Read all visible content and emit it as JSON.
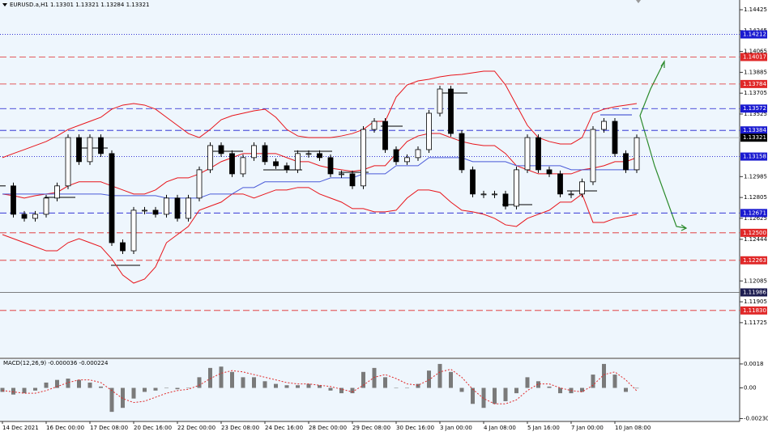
{
  "chart_data": {
    "type": "candlestick",
    "title": "EURUSD.a,H1  1.13301 1.13321 1.13284 1.13321",
    "categories": [
      "14 Dec 2021",
      null,
      null,
      null,
      "16 Dec 00:00",
      null,
      null,
      null,
      "17 Dec 08:00",
      null,
      null,
      null,
      "20 Dec 16:00",
      null,
      null,
      null,
      "22 Dec 00:00",
      null,
      null,
      null,
      "23 Dec 08:00",
      null,
      null,
      null,
      "24 Dec 16:00",
      null,
      null,
      null,
      "28 Dec 00:00",
      null,
      null,
      null,
      "29 Dec 08:00",
      null,
      null,
      null,
      "30 Dec 16:00",
      null,
      null,
      null,
      "3 Jan 00:00",
      null,
      null,
      null,
      "4 Jan 08:00",
      null,
      null,
      null,
      "5 Jan 16:00",
      null,
      null,
      null,
      "7 Jan 00:00",
      null,
      null,
      null,
      "10 Jan 08:00",
      null,
      null
    ],
    "close": [
      1.12905,
      1.1266,
      1.12625,
      1.1266,
      1.128,
      1.12905,
      1.13322,
      1.13114,
      1.13322,
      1.13184,
      1.12415,
      1.12345,
      1.12695,
      1.12695,
      1.1266,
      1.128,
      1.12625,
      1.128,
      1.13044,
      1.13253,
      1.13184,
      1.13009,
      1.13149,
      1.13253,
      1.13114,
      1.13079,
      1.13044,
      1.13184,
      1.13184,
      1.13149,
      1.13009,
      1.13009,
      1.12905,
      1.13392,
      1.13462,
      1.13218,
      1.13114,
      1.13149,
      1.13218,
      1.13532,
      1.13741,
      1.13357,
      1.13044,
      1.12835,
      1.12835,
      1.12835,
      1.1273,
      1.13044,
      1.13322,
      1.13044,
      1.13009,
      1.12835,
      1.12835,
      1.1294,
      1.13392,
      1.13462,
      1.13184,
      1.13044,
      1.13321
    ],
    "series": [
      {
        "color": "#e8141a",
        "values": [
          1.13149,
          1.13184,
          1.13218,
          1.13253,
          1.13288,
          1.13336,
          1.13392,
          1.13427,
          1.13462,
          1.13497,
          1.13567,
          1.13602,
          1.13616,
          1.13602,
          1.13567,
          1.13497,
          1.13427,
          1.13357,
          1.13322,
          1.13392,
          1.13476,
          1.13511,
          1.13532,
          1.13553,
          1.13567,
          1.13497,
          1.13392,
          1.13336,
          1.13322,
          1.13322,
          1.13322,
          1.13336,
          1.13357,
          1.13392,
          1.13462,
          1.13462,
          1.13671,
          1.13776,
          1.13811,
          1.13825,
          1.13846,
          1.1386,
          1.13867,
          1.13881,
          1.13895,
          1.13895,
          1.13776,
          1.13602,
          1.13427,
          1.13322,
          1.13288,
          1.13267,
          1.13267,
          1.13322,
          1.13532,
          1.13567,
          1.13588,
          1.13602,
          1.13616
        ]
      },
      {
        "color": "#e8141a",
        "values": [
          1.12835,
          1.12821,
          1.128,
          1.12821,
          1.12835,
          1.12849,
          1.12905,
          1.1294,
          1.1294,
          1.1294,
          1.12905,
          1.1287,
          1.12835,
          1.12835,
          1.1287,
          1.1294,
          1.12974,
          1.12974,
          1.13009,
          1.13058,
          1.13114,
          1.13149,
          1.13184,
          1.13184,
          1.13184,
          1.13184,
          1.13149,
          1.13114,
          1.13114,
          1.13079,
          1.13058,
          1.13044,
          1.1303,
          1.13044,
          1.13079,
          1.13079,
          1.13184,
          1.13288,
          1.13336,
          1.13357,
          1.13357,
          1.13322,
          1.13288,
          1.13267,
          1.13253,
          1.13253,
          1.13184,
          1.13079,
          1.13044,
          1.13009,
          1.13009,
          1.13009,
          1.13009,
          1.13044,
          1.13058,
          1.13079,
          1.13114,
          1.13114,
          1.13149
        ]
      },
      {
        "color": "#e8141a",
        "values": [
          1.12485,
          1.1245,
          1.12415,
          1.1238,
          1.12345,
          1.12345,
          1.12415,
          1.1245,
          1.12415,
          1.1238,
          1.12275,
          1.12136,
          1.12066,
          1.12101,
          1.12206,
          1.12415,
          1.12485,
          1.12555,
          1.12695,
          1.1273,
          1.12765,
          1.12835,
          1.12835,
          1.128,
          1.12835,
          1.1287,
          1.1287,
          1.12891,
          1.12891,
          1.12835,
          1.128,
          1.12765,
          1.12709,
          1.12709,
          1.12681,
          1.12681,
          1.12695,
          1.128,
          1.1287,
          1.1287,
          1.12849,
          1.12765,
          1.12695,
          1.12681,
          1.1266,
          1.12625,
          1.12569,
          1.12555,
          1.12625,
          1.1266,
          1.12695,
          1.12765,
          1.12765,
          1.12835,
          1.1259,
          1.1259,
          1.12625,
          1.12639,
          1.1266
        ]
      },
      {
        "color": "#4a5ad8",
        "values": [
          1.12835,
          1.12835,
          1.12835,
          1.12835,
          1.12835,
          1.12835,
          1.12835,
          1.12835,
          1.12835,
          1.12835,
          1.12821,
          1.12821,
          1.12821,
          1.12821,
          1.12821,
          1.128,
          1.128,
          1.128,
          1.128,
          1.12835,
          1.12835,
          1.12835,
          1.12891,
          1.12891,
          1.1294,
          1.1294,
          1.1294,
          1.1294,
          1.1294,
          1.1294,
          1.12974,
          1.12974,
          1.12974,
          1.13009,
          1.13009,
          1.13009,
          1.13079,
          1.13079,
          1.13079,
          1.13149,
          1.13149,
          1.13149,
          1.13149,
          1.13114,
          1.13114,
          1.13114,
          1.13114,
          1.13079,
          1.13079,
          1.13079,
          1.13079,
          1.13079,
          1.13044,
          1.13044,
          1.13044,
          1.13044,
          1.13044,
          1.13044,
          1.13044
        ]
      }
    ],
    "ylim": [
      1.11424,
      1.14509
    ],
    "yticks": [
      1.14425,
      1.14245,
      1.14065,
      1.13885,
      1.13705,
      1.13525,
      1.12985,
      1.12805,
      1.12625,
      1.12444,
      1.12085,
      1.11905,
      1.11725
    ],
    "levels": [
      {
        "price": 1.14212,
        "color": "#1a1ad0",
        "style": "dotted"
      },
      {
        "price": 1.14017,
        "color": "#e02828",
        "style": "dashed"
      },
      {
        "price": 1.13784,
        "color": "#e02828",
        "style": "dashed"
      },
      {
        "price": 1.13572,
        "color": "#1a1ad0",
        "style": "dashed"
      },
      {
        "price": 1.13384,
        "color": "#1a1ad0",
        "style": "dashed"
      },
      {
        "price": 1.13321,
        "color": "#000000",
        "style": "bid"
      },
      {
        "price": 1.13158,
        "color": "#1a1ad0",
        "style": "dotted"
      },
      {
        "price": 1.12671,
        "color": "#1a1ad0",
        "style": "dashed"
      },
      {
        "price": 1.125,
        "label": "1.12500",
        "color": "#e02828",
        "style": "dashed"
      },
      {
        "price": 1.12263,
        "color": "#e02828",
        "style": "dashed"
      },
      {
        "price": 1.11986,
        "color": "#1c1c50",
        "style": "solid"
      },
      {
        "price": 1.1183,
        "label": "1.11830",
        "color": "#e02828",
        "style": "dashed"
      }
    ],
    "macd": {
      "title": "MACD(12,26,9) -0.000036 -0.000224",
      "ylim": [
        -0.00246,
        0.00216
      ],
      "yticks": [
        0.0018,
        {
          "value": 0,
          "label": "0.00"
        },
        -0.002306
      ],
      "histogram_color": "#7a7a7a",
      "signal_color": "#e02828",
      "histogram": [
        -0.0003,
        -0.0005,
        -0.0004,
        -0.0002,
        0.0004,
        0.0006,
        0.0007,
        0.0006,
        0.0004,
        0.0001,
        -0.0018,
        -0.0015,
        -0.0008,
        -0.0003,
        -0.0002,
        0.0,
        -0.0001,
        0.0,
        0.0008,
        0.0015,
        0.0016,
        0.0012,
        0.0008,
        0.0008,
        0.0005,
        0.0003,
        0.0002,
        0.0002,
        0.0003,
        0.0002,
        -0.0002,
        -0.0004,
        -0.0004,
        0.0012,
        0.0015,
        0.0008,
        0.0,
        0.0,
        0.0003,
        0.0013,
        0.0018,
        0.0012,
        -0.0003,
        -0.0012,
        -0.0015,
        -0.0012,
        -0.001,
        -0.0004,
        0.0008,
        0.0005,
        0.0001,
        -0.0004,
        -0.0004,
        -0.0003,
        0.001,
        0.0018,
        0.001,
        -0.0003,
        -3.6e-05
      ],
      "signal": [
        -0.0002,
        -0.0003,
        -0.0004,
        -0.0004,
        -0.0002,
        0.0001,
        0.0004,
        0.0006,
        0.0006,
        0.0004,
        -0.0002,
        -0.0008,
        -0.0011,
        -0.001,
        -0.0007,
        -0.0004,
        -0.0002,
        -0.0001,
        0.0002,
        0.0007,
        0.0011,
        0.0013,
        0.0012,
        0.001,
        0.0008,
        0.0006,
        0.0004,
        0.0003,
        0.0003,
        0.0002,
        0.0001,
        -0.0001,
        -0.0003,
        0.0002,
        0.0008,
        0.001,
        0.0007,
        0.0003,
        0.0002,
        0.0006,
        0.0012,
        0.0014,
        0.0008,
        -0.0001,
        -0.0008,
        -0.0012,
        -0.0012,
        -0.0009,
        -0.0002,
        0.0003,
        0.0003,
        0.0,
        -0.0002,
        -0.0003,
        0.0002,
        0.001,
        0.0012,
        0.0006,
        -0.000224
      ]
    }
  }
}
